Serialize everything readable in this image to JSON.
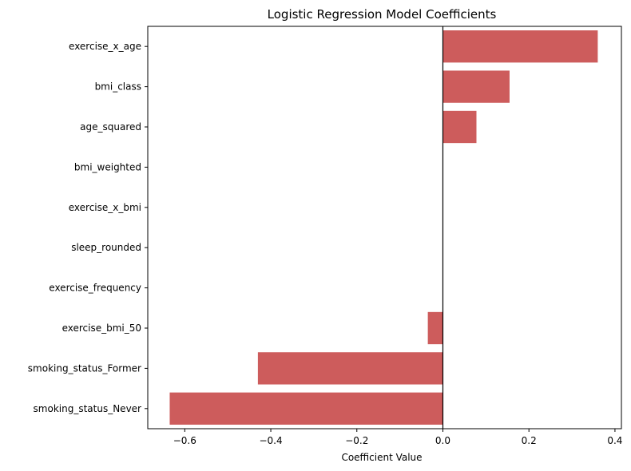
{
  "chart_data": {
    "type": "bar",
    "orientation": "horizontal",
    "title": "Logistic Regression Model Coefficients",
    "xlabel": "Coefficient Value",
    "ylabel": "",
    "categories": [
      "exercise_x_age",
      "bmi_class",
      "age_squared",
      "bmi_weighted",
      "exercise_x_bmi",
      "sleep_rounded",
      "exercise_frequency",
      "exercise_bmi_50",
      "smoking_status_Former",
      "smoking_status_Never"
    ],
    "values": [
      0.36,
      0.155,
      0.078,
      0.0,
      0.0,
      0.0,
      0.0,
      -0.035,
      -0.43,
      -0.635
    ],
    "xlim": [
      -0.686,
      0.415
    ],
    "xticks": [
      -0.6,
      -0.4,
      -0.2,
      0.0,
      0.2,
      0.4
    ],
    "xtick_labels": [
      "−0.6",
      "−0.4",
      "−0.2",
      "0.0",
      "0.2",
      "0.4"
    ],
    "bar_color": "#cd5c5c",
    "zero_line": true,
    "grid": false
  }
}
